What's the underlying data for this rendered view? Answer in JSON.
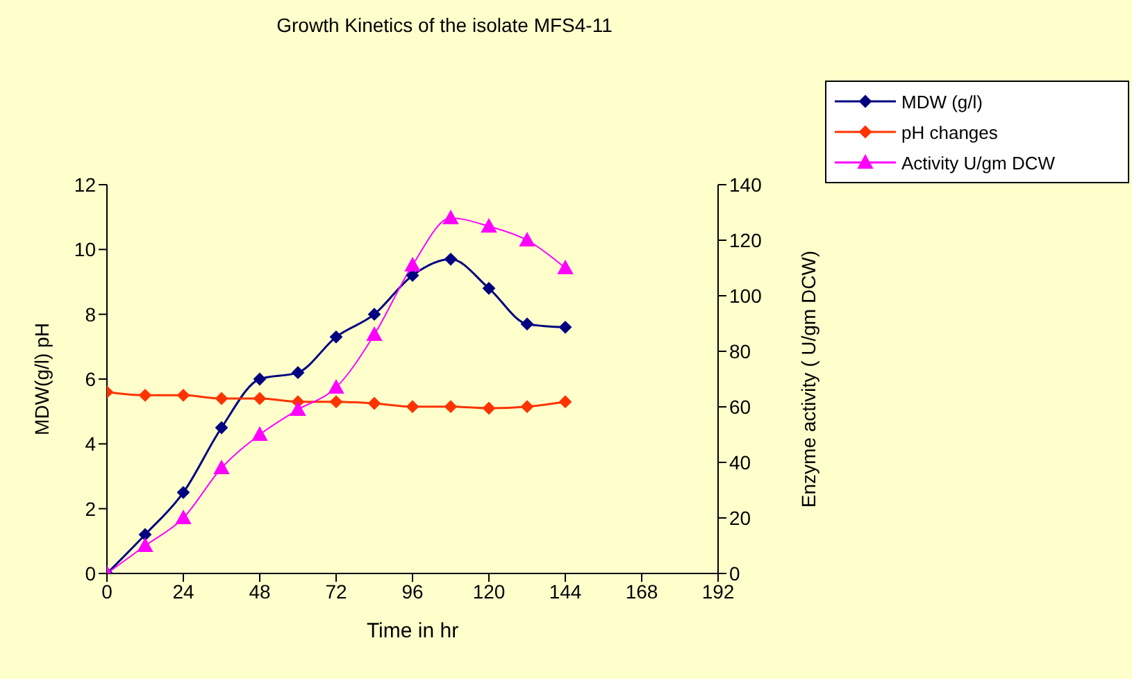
{
  "chart_data": {
    "type": "line",
    "title": "Growth Kinetics of the isolate MFS4-11",
    "xlabel": "Time in hr",
    "ylabel": "MDW(g/l) pH",
    "y2label": "Enzyme activity ( U/gm DCW)",
    "x": [
      0,
      12,
      24,
      36,
      48,
      60,
      72,
      84,
      96,
      108,
      120,
      132,
      144
    ],
    "series": [
      {
        "name": "MDW (g/l)",
        "color": "#000080",
        "marker": "diamond",
        "values": [
          0,
          1.2,
          2.5,
          4.5,
          6.0,
          6.2,
          7.3,
          8.0,
          9.2,
          9.7,
          8.8,
          7.7,
          7.6
        ]
      },
      {
        "name": "pH changes",
        "color": "#ff3300",
        "marker": "diamond",
        "values": [
          5.6,
          5.5,
          5.5,
          5.4,
          5.4,
          5.3,
          5.3,
          5.25,
          5.15,
          5.15,
          5.1,
          5.15,
          5.3
        ]
      },
      {
        "name": "Activity U/gm DCW",
        "color": "#ff00ff",
        "marker": "triangle",
        "axis": "y2",
        "values": [
          0,
          10,
          20,
          38,
          50,
          59,
          67,
          86,
          111,
          128,
          125,
          120,
          110
        ]
      }
    ],
    "xlim": [
      0,
      192
    ],
    "xticks": [
      0,
      24,
      48,
      72,
      96,
      120,
      144,
      168,
      192
    ],
    "ylim": [
      0,
      12
    ],
    "yticks": [
      0,
      2,
      4,
      6,
      8,
      10,
      12
    ],
    "y2lim": [
      0,
      140
    ],
    "y2ticks": [
      0,
      20,
      40,
      60,
      80,
      100,
      120,
      140
    ],
    "grid": false,
    "legend": "top right"
  }
}
